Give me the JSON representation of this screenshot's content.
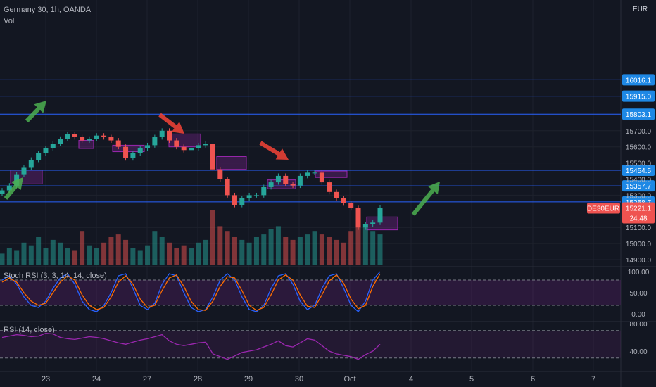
{
  "header": {
    "title": "Germany 30, 1h, OANDA",
    "volume_label": "Vol",
    "currency": "EUR",
    "stoch_label": "Stoch RSI (3, 3, 14, 14, close)",
    "rsi_label": "RSI (14, close)"
  },
  "colors": {
    "background": "#131722",
    "up": "#26a69a",
    "down": "#ef5350",
    "level_line": "#2962ff",
    "level_badge": "#1e88e5",
    "zone": "#9c27b0",
    "price_badge": "#ef5350",
    "arrow_up": "#4caf50",
    "arrow_down": "#f44336",
    "stoch_k": "#2962ff",
    "stoch_d": "#ff6d00",
    "rsi": "#9c27b0"
  },
  "chart_data": [
    {
      "type": "candlestick",
      "title": "Germany 30, 1h, OANDA",
      "currency": "EUR",
      "ylim": [
        14850,
        15800
      ],
      "y_ticks": [
        15700.0,
        15600.0,
        15500.0,
        15400.0,
        15300.0,
        15100.0,
        15000.0,
        14900.0
      ],
      "x_ticks": [
        "23",
        "24",
        "27",
        "28",
        "29",
        "30",
        "Oct",
        "4",
        "5",
        "6",
        "7"
      ],
      "key_levels": [
        16016.1,
        15915.0,
        15803.1,
        15454.5,
        15357.7,
        15258.7
      ],
      "current_price": {
        "symbol": "DE30EUR",
        "price": "15221.1",
        "countdown": "24:48"
      },
      "close_path": [
        15330,
        15360,
        15430,
        15470,
        15520,
        15560,
        15590,
        15620,
        15650,
        15680,
        15660,
        15640,
        15650,
        15670,
        15660,
        15640,
        15600,
        15530,
        15560,
        15590,
        15610,
        15660,
        15700,
        15640,
        15600,
        15580,
        15590,
        15610,
        15620,
        15460,
        15400,
        15300,
        15240,
        15280,
        15300,
        15300,
        15350,
        15380,
        15420,
        15370,
        15360,
        15420,
        15440,
        15440,
        15380,
        15320,
        15280,
        15250,
        15220,
        15100,
        15120,
        15130,
        15221
      ]
    },
    {
      "type": "bar",
      "title": "Vol",
      "relative_values": [
        0.2,
        0.3,
        0.25,
        0.4,
        0.35,
        0.5,
        0.3,
        0.45,
        0.4,
        0.3,
        0.25,
        0.6,
        0.35,
        0.3,
        0.4,
        0.5,
        0.55,
        0.45,
        0.3,
        0.25,
        0.35,
        0.6,
        0.5,
        0.4,
        0.3,
        0.35,
        0.3,
        0.4,
        0.45,
        1.0,
        0.7,
        0.6,
        0.5,
        0.45,
        0.4,
        0.5,
        0.55,
        0.65,
        0.7,
        0.5,
        0.45,
        0.5,
        0.55,
        0.6,
        0.55,
        0.5,
        0.45,
        0.4,
        0.6,
        0.8,
        0.7,
        0.6,
        0.55
      ]
    },
    {
      "type": "line",
      "title": "Stoch RSI (3, 3, 14, 14, close)",
      "ylim": [
        0,
        100
      ],
      "y_ticks": [
        "100.00",
        "50.00",
        "0.00"
      ],
      "series": [
        {
          "values": [
            80,
            90,
            70,
            40,
            20,
            15,
            30,
            60,
            85,
            95,
            70,
            30,
            10,
            5,
            20,
            50,
            90,
            95,
            60,
            20,
            10,
            25,
            70,
            95,
            90,
            50,
            15,
            5,
            10,
            40,
            80,
            95,
            80,
            40,
            10,
            5,
            20,
            60,
            90,
            95,
            70,
            30,
            10,
            20,
            60,
            90,
            95,
            60,
            20,
            5,
            30,
            80,
            100
          ]
        },
        {
          "values": [
            75,
            85,
            75,
            50,
            30,
            20,
            25,
            50,
            75,
            90,
            80,
            45,
            20,
            10,
            15,
            40,
            75,
            90,
            70,
            35,
            15,
            20,
            55,
            85,
            92,
            65,
            30,
            10,
            8,
            30,
            65,
            88,
            85,
            55,
            20,
            8,
            15,
            45,
            80,
            92,
            80,
            45,
            18,
            15,
            45,
            78,
            92,
            72,
            35,
            12,
            20,
            65,
            95
          ]
        }
      ]
    },
    {
      "type": "line",
      "title": "RSI (14, close)",
      "ylim": [
        20,
        85
      ],
      "y_ticks": [
        "80.00",
        "40.00"
      ],
      "series": [
        {
          "values": [
            60,
            62,
            64,
            63,
            61,
            62,
            66,
            65,
            60,
            58,
            57,
            59,
            61,
            60,
            58,
            55,
            52,
            50,
            53,
            56,
            58,
            61,
            64,
            55,
            50,
            48,
            50,
            52,
            53,
            36,
            32,
            28,
            33,
            38,
            40,
            42,
            46,
            50,
            55,
            48,
            46,
            52,
            58,
            56,
            48,
            40,
            36,
            34,
            32,
            28,
            35,
            40,
            50
          ]
        }
      ]
    }
  ]
}
